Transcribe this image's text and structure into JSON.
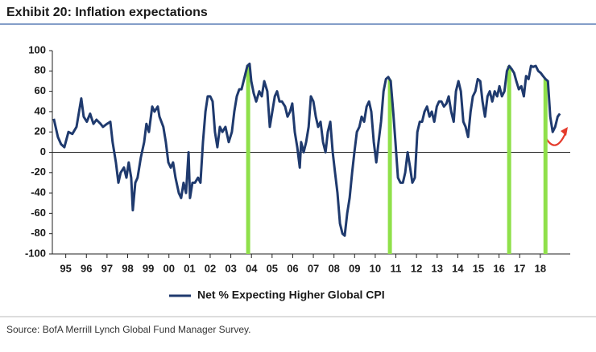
{
  "chart_data": {
    "type": "line",
    "title": "Exhibit 20: Inflation expectations",
    "source": "Source: BofA Merrill Lynch Global Fund Manager Survey.",
    "x": [
      1994.92,
      1995.12,
      1995.27,
      1995.43,
      1995.63,
      1995.82,
      1996.02,
      1996.25,
      1996.37,
      1996.52,
      1996.68,
      1996.84,
      1996.99,
      1997.19,
      1997.3,
      1997.5,
      1997.66,
      1997.77,
      1997.93,
      1998.05,
      1998.16,
      1998.32,
      1998.44,
      1998.55,
      1998.67,
      1998.75,
      1998.87,
      1998.98,
      1999.14,
      1999.3,
      1999.41,
      1999.53,
      1999.69,
      1999.8,
      1999.96,
      2000.04,
      2000.23,
      2000.35,
      2000.47,
      2000.59,
      2000.7,
      2000.82,
      2000.98,
      2001.09,
      2001.21,
      2001.33,
      2001.45,
      2001.52,
      2001.64,
      2001.76,
      2001.91,
      2002.03,
      2002.15,
      2002.27,
      2002.38,
      2002.5,
      2002.62,
      2002.73,
      2002.85,
      2002.97,
      2003.09,
      2003.24,
      2003.4,
      2003.55,
      2003.67,
      2003.79,
      2003.91,
      2004.02,
      2004.18,
      2004.3,
      2004.41,
      2004.49,
      2004.61,
      2004.73,
      2004.88,
      2005.0,
      2005.12,
      2005.27,
      2005.39,
      2005.51,
      2005.63,
      2005.74,
      2005.86,
      2005.98,
      2006.13,
      2006.25,
      2006.37,
      2006.48,
      2006.6,
      2006.72,
      2006.84,
      2006.91,
      2007.03,
      2007.15,
      2007.27,
      2007.38,
      2007.5,
      2007.62,
      2007.73,
      2007.85,
      2007.97,
      2008.09,
      2008.2,
      2008.32,
      2008.44,
      2008.55,
      2008.67,
      2008.79,
      2008.91,
      2009.02,
      2009.14,
      2009.26,
      2009.38,
      2009.49,
      2009.61,
      2009.73,
      2009.84,
      2009.96,
      2010.08,
      2010.2,
      2010.31,
      2010.43,
      2010.55,
      2010.66,
      2010.78,
      2010.9,
      2011.02,
      2011.13,
      2011.25,
      2011.37,
      2011.48,
      2011.6,
      2011.72,
      2011.84,
      2011.95,
      2012.07,
      2012.19,
      2012.3,
      2012.42,
      2012.54,
      2012.66,
      2012.77,
      2012.89,
      2013.01,
      2013.13,
      2013.24,
      2013.36,
      2013.48,
      2013.59,
      2013.71,
      2013.83,
      2013.95,
      2014.06,
      2014.18,
      2014.3,
      2014.41,
      2014.53,
      2014.65,
      2014.77,
      2014.88,
      2015.0,
      2015.12,
      2015.23,
      2015.35,
      2015.47,
      2015.59,
      2015.7,
      2015.82,
      2015.94,
      2016.05,
      2016.17,
      2016.29,
      2016.41,
      2016.52,
      2016.64,
      2016.76,
      2016.88,
      2016.99,
      2017.11,
      2017.23,
      2017.34,
      2017.46,
      2017.58,
      2017.7,
      2017.81,
      2017.93,
      2018.05,
      2018.16,
      2018.28,
      2018.4,
      2018.52,
      2018.63,
      2018.75,
      2018.87,
      2018.98,
      2019.1,
      2019.22,
      2019.34,
      2019.45
    ],
    "series": [
      {
        "name": "Net % Expecting Higher Global CPI",
        "color": "#1f3a6e",
        "values": [
          33,
          15,
          8,
          5,
          20,
          18,
          25,
          53,
          35,
          30,
          38,
          28,
          32,
          28,
          25,
          28,
          30,
          10,
          -10,
          -30,
          -20,
          -15,
          -25,
          -10,
          -25,
          -57,
          -30,
          -25,
          -5,
          10,
          28,
          20,
          45,
          40,
          45,
          35,
          25,
          10,
          -10,
          -15,
          -10,
          -25,
          -40,
          -45,
          -30,
          -40,
          0,
          -45,
          -30,
          -30,
          -25,
          -30,
          10,
          40,
          55,
          55,
          50,
          20,
          5,
          25,
          20,
          25,
          10,
          20,
          40,
          55,
          62,
          62,
          75,
          85,
          87,
          70,
          58,
          50,
          60,
          55,
          70,
          60,
          25,
          40,
          55,
          60,
          50,
          50,
          45,
          35,
          40,
          48,
          20,
          5,
          -15,
          10,
          0,
          10,
          25,
          55,
          50,
          35,
          25,
          30,
          10,
          0,
          20,
          30,
          0,
          -20,
          -40,
          -70,
          -80,
          -82,
          -60,
          -45,
          -20,
          0,
          20,
          25,
          35,
          30,
          45,
          50,
          40,
          10,
          -10,
          10,
          30,
          60,
          72,
          74,
          70,
          40,
          10,
          -25,
          -30,
          -30,
          -20,
          0,
          -15,
          -30,
          -25,
          20,
          30,
          30,
          40,
          45,
          35,
          40,
          30,
          45,
          50,
          50,
          45,
          48,
          55,
          40,
          30,
          60,
          70,
          60,
          30,
          25,
          15,
          40,
          55,
          60,
          72,
          70,
          50,
          35,
          55,
          60,
          50,
          60,
          55,
          65,
          55,
          60,
          80,
          85,
          82,
          78,
          70,
          62,
          65,
          55,
          75,
          72,
          85,
          84,
          85,
          80,
          78,
          75,
          72,
          70,
          35,
          20,
          25,
          35,
          38
        ]
      }
    ],
    "highlights": {
      "x": [
        2004.34,
        2011.21,
        2016.99,
        2018.75
      ],
      "color": "#8fe04a"
    },
    "xlim": [
      1994.85,
      2019.95
    ],
    "ylim": [
      -100,
      100
    ],
    "yticks": [
      -100,
      -80,
      -60,
      -40,
      -20,
      0,
      20,
      40,
      60,
      80,
      100
    ],
    "xticks": [
      {
        "value": 1995.5,
        "label": "95"
      },
      {
        "value": 1996.5,
        "label": "96"
      },
      {
        "value": 1997.5,
        "label": "97"
      },
      {
        "value": 1998.5,
        "label": "98"
      },
      {
        "value": 1999.5,
        "label": "99"
      },
      {
        "value": 2000.5,
        "label": "00"
      },
      {
        "value": 2001.5,
        "label": "01"
      },
      {
        "value": 2002.5,
        "label": "02"
      },
      {
        "value": 2003.5,
        "label": "03"
      },
      {
        "value": 2004.5,
        "label": "04"
      },
      {
        "value": 2005.5,
        "label": "05"
      },
      {
        "value": 2006.5,
        "label": "06"
      },
      {
        "value": 2007.5,
        "label": "07"
      },
      {
        "value": 2008.5,
        "label": "08"
      },
      {
        "value": 2009.5,
        "label": "09"
      },
      {
        "value": 2010.5,
        "label": "10"
      },
      {
        "value": 2011.5,
        "label": "11"
      },
      {
        "value": 2012.5,
        "label": "12"
      },
      {
        "value": 2013.5,
        "label": "13"
      },
      {
        "value": 2014.5,
        "label": "14"
      },
      {
        "value": 2015.5,
        "label": "15"
      },
      {
        "value": 2016.5,
        "label": "16"
      },
      {
        "value": 2017.5,
        "label": "17"
      },
      {
        "value": 2018.5,
        "label": "18"
      }
    ],
    "zero_line": true,
    "legend": "bottom"
  }
}
